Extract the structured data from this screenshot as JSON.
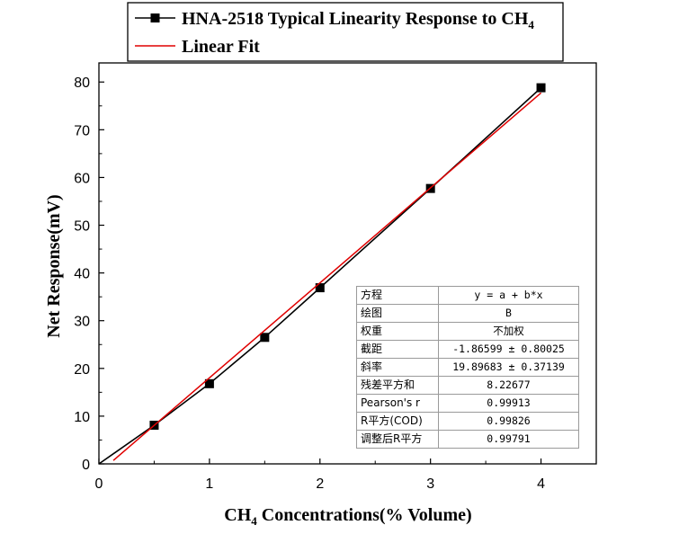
{
  "chart_data": {
    "type": "line",
    "legend": {
      "placement": "top",
      "entries": [
        {
          "label_main": "HNA-2518 Typical Linearity Response to CH",
          "label_sub": "4",
          "color": "#000000",
          "marker": "square"
        },
        {
          "label_main": "Linear Fit",
          "label_sub": "",
          "color": "#e00000",
          "marker": "none"
        }
      ]
    },
    "xlabel": {
      "pre": "CH",
      "sub": "4",
      "post": " Concentrations(% Volume)"
    },
    "ylabel": "Net Response(mV)",
    "xlim": [
      0,
      4.5
    ],
    "ylim": [
      0,
      84
    ],
    "xticks": [
      "0",
      "1",
      "2",
      "3",
      "4"
    ],
    "yticks": [
      "0",
      "10",
      "20",
      "30",
      "40",
      "50",
      "60",
      "70",
      "80"
    ],
    "grid": false,
    "series": [
      {
        "color": "#000000",
        "marker": "square",
        "x": [
          0,
          0.5,
          1.0,
          1.5,
          2.0,
          3.0,
          4.0
        ],
        "y": [
          0,
          8.1,
          16.8,
          26.5,
          36.9,
          57.7,
          78.8
        ]
      },
      {
        "color": "#e00000",
        "marker": "none",
        "x": [
          0.13,
          4.0
        ],
        "y": [
          0.72,
          77.72
        ]
      }
    ],
    "stats_table": [
      {
        "key": "方程",
        "value": "y = a + b*x"
      },
      {
        "key": "绘图",
        "value": "B"
      },
      {
        "key": "权重",
        "value": "不加权"
      },
      {
        "key": "截距",
        "value": "-1.86599 ± 0.80025"
      },
      {
        "key": "斜率",
        "value": "19.89683 ± 0.37139"
      },
      {
        "key": "残差平方和",
        "value": "8.22677"
      },
      {
        "key": "Pearson's r",
        "value": "0.99913"
      },
      {
        "key": "R平方(COD)",
        "value": "0.99826"
      },
      {
        "key": "调整后R平方",
        "value": "0.99791"
      }
    ]
  }
}
